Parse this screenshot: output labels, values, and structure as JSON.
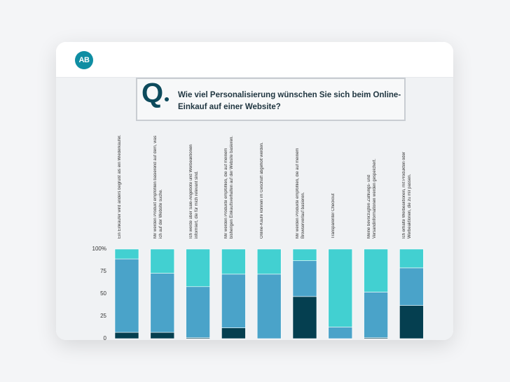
{
  "logo_text": "AB",
  "question": {
    "mark": "Q",
    "text": "Wie viel Personalisierung wünschen Sie sich beim Online-Einkauf auf einer Website?"
  },
  "colors": {
    "dark": "#053f50",
    "mid": "#4aa3c9",
    "light": "#42d0d1"
  },
  "chart_data": {
    "type": "bar",
    "stacked": true,
    "categories": [
      "Ein Einkäufer wird anders begrüßt als ein Wiederkäufer.",
      "Mir werden Produkt empfohlen basierend auf dem, was ich auf der Website suche.",
      "Ich werde über Sale-Angebote und Werbeaktionen informiert, die für mich relevant sind.",
      "Mir werden Produkte empfohlen, die auf meinem bisherigen Einkaufsverhalten auf der Website basieren.",
      "Online-Käufe können im Geschäft abgeholt werden.",
      "Mir werden Produkte empfohlen, die auf meinem Browserverlauf basieren.",
      "Transparenter Checkout",
      "Meine bevorzugten Zahlungs- und Versandinformationen werden gespeichert.",
      "Ich erhalte Werbeaktionen, mit Produkten oder Werbeaktionen, die zu mir passen."
    ],
    "series": [
      {
        "values": [
          7,
          7,
          1,
          12,
          0,
          47,
          0,
          1,
          37
        ]
      },
      {
        "values": [
          82,
          66,
          57,
          60,
          72,
          40,
          13,
          51,
          42
        ]
      },
      {
        "values": [
          11,
          27,
          42,
          28,
          28,
          13,
          87,
          48,
          21
        ]
      }
    ],
    "yticks": [
      "0",
      "25",
      "50",
      "75",
      "100%"
    ],
    "ylim": [
      0,
      100
    ]
  }
}
